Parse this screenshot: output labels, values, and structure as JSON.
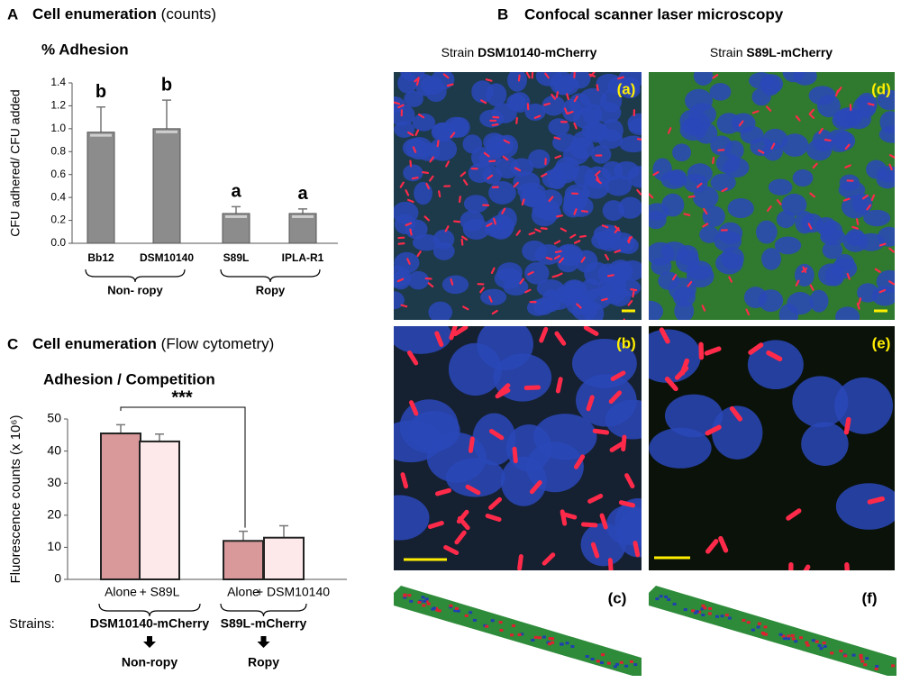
{
  "chart_data": [
    {
      "type": "bar",
      "panel": "A",
      "heading": "Cell enumeration",
      "heading_note": "(counts)",
      "title": "% Adhesion",
      "y_label": "CFU adhered/ CFU added",
      "categories": [
        "Bb12",
        "DSM10140",
        "S89L",
        "IPLA-R1"
      ],
      "values": [
        0.97,
        1.0,
        0.26,
        0.26
      ],
      "errors": [
        0.22,
        0.25,
        0.06,
        0.04
      ],
      "significance_letters": [
        "b",
        "b",
        "a",
        "a"
      ],
      "groups": [
        "Non- ropy",
        "Ropy"
      ],
      "color": "#8c8c8c",
      "ylim": [
        0,
        1.4
      ],
      "yticks": [
        {
          "value": 0,
          "label": "0.0"
        },
        0.2,
        0.4,
        0.6,
        0.8,
        {
          "value": 1,
          "label": "1.0"
        },
        1.2,
        1.4
      ]
    },
    {
      "type": "bar",
      "panel": "C",
      "heading": "Cell enumeration",
      "heading_note": "(Flow cytometry)",
      "title": "Adhesion / Competition",
      "y_label": "Fluorescence counts  (x 10⁶)",
      "categories": [
        "Alone",
        "+ S89L",
        "Alone",
        "+ DSM10140"
      ],
      "values": [
        45.5,
        43,
        12,
        13
      ],
      "errors": [
        2.7,
        2.3,
        3,
        3.7
      ],
      "colors": [
        "#d9999b",
        "#fde8ea",
        "#d9999b",
        "#fde8ea"
      ],
      "annotation": "***",
      "strains_label": "Strains:",
      "groups": [
        "DSM10140-mCherry",
        "S89L-mCherry"
      ],
      "group_types": [
        "Non-ropy",
        "Ropy"
      ],
      "ylim": [
        0,
        50
      ],
      "yticks": [
        0,
        10,
        20,
        30,
        40,
        50
      ]
    }
  ],
  "panel_b": {
    "label": "B",
    "title": "Confocal scanner laser microscopy",
    "column_prefix": "Strain",
    "columns": [
      "DSM10140-mCherry",
      "S89L-mCherry"
    ],
    "image_labels": [
      "(a)",
      "(b)",
      "(c)",
      "(d)",
      "(e)",
      "(f)"
    ]
  }
}
